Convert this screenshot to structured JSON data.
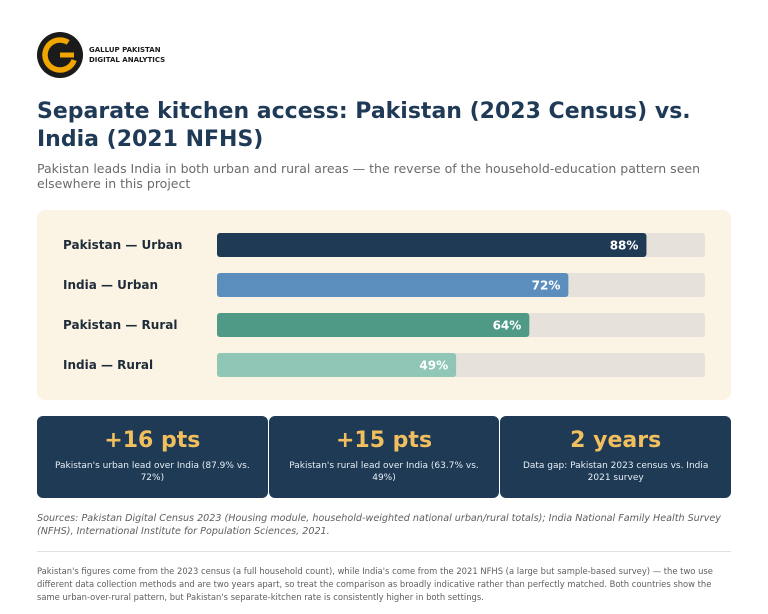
{
  "brand": {
    "logo_line1": "GALLUP PAKISTAN",
    "logo_line2": "DIGITAL ANALYTICS",
    "logo_icon": "gallup-g-logo",
    "logo_color": "#f0a500"
  },
  "header": {
    "title": "Separate kitchen access: Pakistan (2023 Census) vs. India (2021 NFHS)",
    "subtitle": "Pakistan leads India in both urban and rural areas — the reverse of the household-education pattern seen elsewhere in this project"
  },
  "chart_data": {
    "type": "bar",
    "orientation": "horizontal",
    "categories": [
      "Pakistan — Urban",
      "India — Urban",
      "Pakistan — Rural",
      "India — Rural"
    ],
    "values": [
      88,
      72,
      64,
      49
    ],
    "value_labels": [
      "88%",
      "72%",
      "64%",
      "49%"
    ],
    "colors": [
      "#1e3a55",
      "#5b8dbd",
      "#4e9a87",
      "#8fc6b6"
    ],
    "track_color": "#e6e2db",
    "xlim": [
      0,
      100
    ],
    "grid": false,
    "legend": "none",
    "title": "",
    "xlabel": "",
    "ylabel": ""
  },
  "stats": [
    {
      "value": "+16 pts",
      "desc": "Pakistan's urban lead over India (87.9% vs. 72%)"
    },
    {
      "value": "+15 pts",
      "desc": "Pakistan's rural lead over India (63.7% vs. 49%)"
    },
    {
      "value": "2 years",
      "desc": "Data gap: Pakistan 2023 census vs. India 2021 survey"
    }
  ],
  "footer": {
    "sources": "Sources: Pakistan Digital Census 2023 (Housing module, household-weighted national urban/rural totals); India National Family Health Survey (NFHS), International Institute for Population Sciences, 2021.",
    "note": "Pakistan's figures come from the 2023 census (a full household count), while India's come from the 2021 NFHS (a large but sample-based survey) — the two use different data collection methods and are two years apart, so treat the comparison as broadly indicative rather than perfectly matched. Both countries show the same urban-over-rural pattern, but Pakistan's separate-kitchen rate is consistently higher in both settings."
  }
}
